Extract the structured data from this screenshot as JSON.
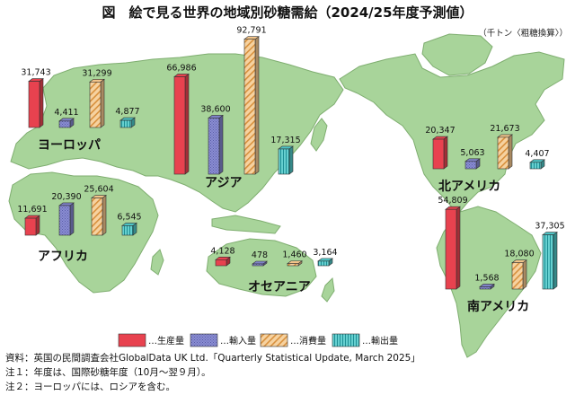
{
  "header": {
    "title": "図　絵で見る世界の地域別砂糖需給（2024/25年度予測値）",
    "unit": "（千トン〈粗糖換算〉）"
  },
  "colors": {
    "production": "#e8424f",
    "imports": "#7f82c8",
    "consumption": "#f2c48a",
    "exports": "#4cc3c4",
    "land": "#a8d49a",
    "land_stroke": "#7fae70"
  },
  "chart_data": {
    "type": "bar",
    "categories": [
      "生産量",
      "輸入量",
      "消費量",
      "輸出量"
    ],
    "regions": [
      {
        "name": "ヨーロッパ",
        "values": [
          31743,
          4411,
          31299,
          4877
        ],
        "labels": [
          "31,743",
          "4,411",
          "31,299",
          "4,877"
        ]
      },
      {
        "name": "アジア",
        "values": [
          66986,
          38600,
          92791,
          17315
        ],
        "labels": [
          "66,986",
          "38,600",
          "92,791",
          "17,315"
        ]
      },
      {
        "name": "アフリカ",
        "values": [
          11691,
          20390,
          25604,
          6545
        ],
        "labels": [
          "11,691",
          "20,390",
          "25,604",
          "6,545"
        ]
      },
      {
        "name": "オセアニア",
        "values": [
          4128,
          478,
          1460,
          3164
        ],
        "labels": [
          "4,128",
          "478",
          "1,460",
          "3,164"
        ]
      },
      {
        "name": "北アメリカ",
        "values": [
          20347,
          5063,
          21673,
          4407
        ],
        "labels": [
          "20,347",
          "5,063",
          "21,673",
          "4,407"
        ]
      },
      {
        "name": "南アメリカ",
        "values": [
          54809,
          1568,
          18080,
          37305
        ],
        "labels": [
          "54,809",
          "1,568",
          "18,080",
          "37,305"
        ]
      }
    ]
  },
  "legend": [
    {
      "key": "production",
      "label": "…生産量"
    },
    {
      "key": "imports",
      "label": "…輸入量"
    },
    {
      "key": "consumption",
      "label": "…消費量"
    },
    {
      "key": "exports",
      "label": "…輸出量"
    }
  ],
  "notes": {
    "source": "資料：英国の民間調査会社GlobalData UK Ltd.「Quarterly Statistical Update, March 2025」",
    "note1": "注１：年度は、国際砂糖年度（10月～翌９月）。",
    "note2": "注２：ヨーロッパには、ロシアを含む。"
  }
}
